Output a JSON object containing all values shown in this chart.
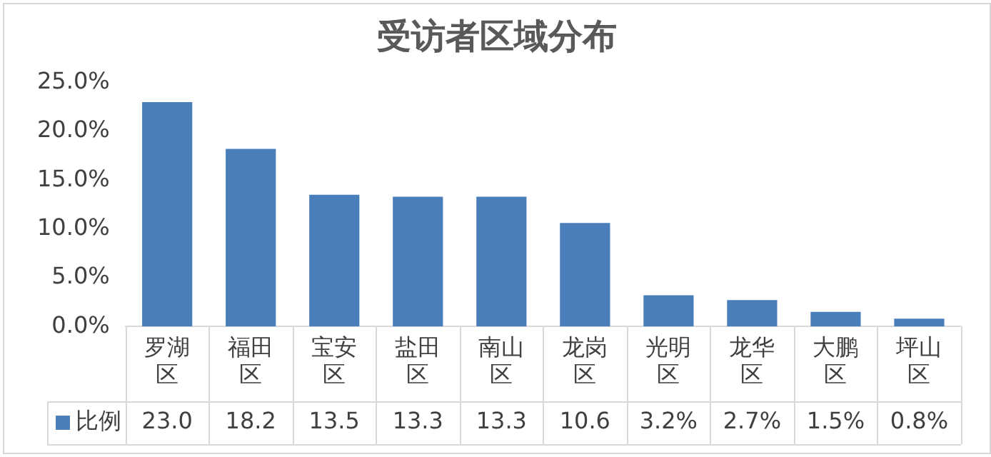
{
  "chart_data": {
    "type": "bar",
    "title": "受访者区域分布",
    "categories": [
      "罗湖区",
      "福田区",
      "宝安区",
      "盐田区",
      "南山区",
      "龙岗区",
      "光明区",
      "龙华区",
      "大鹏区",
      "坪山区"
    ],
    "series": [
      {
        "name": "比例",
        "color": "#4a7ebb",
        "values": [
          23.0,
          18.2,
          13.5,
          13.3,
          13.3,
          10.6,
          3.2,
          2.7,
          1.5,
          0.8
        ],
        "value_labels": [
          "23.0",
          "18.2",
          "13.5",
          "13.3",
          "13.3",
          "10.6",
          "3.2%",
          "2.7%",
          "1.5%",
          "0.8%"
        ]
      }
    ],
    "ylim": [
      0,
      25
    ],
    "yticks": [
      {
        "value": 0,
        "label": "0.0%"
      },
      {
        "value": 5,
        "label": "5.0%"
      },
      {
        "value": 10,
        "label": "10.0%"
      },
      {
        "value": 15,
        "label": "15.0%"
      },
      {
        "value": 20,
        "label": "20.0%"
      },
      {
        "value": 25,
        "label": "25.0%"
      }
    ],
    "grid": false,
    "legend": "bottom"
  }
}
